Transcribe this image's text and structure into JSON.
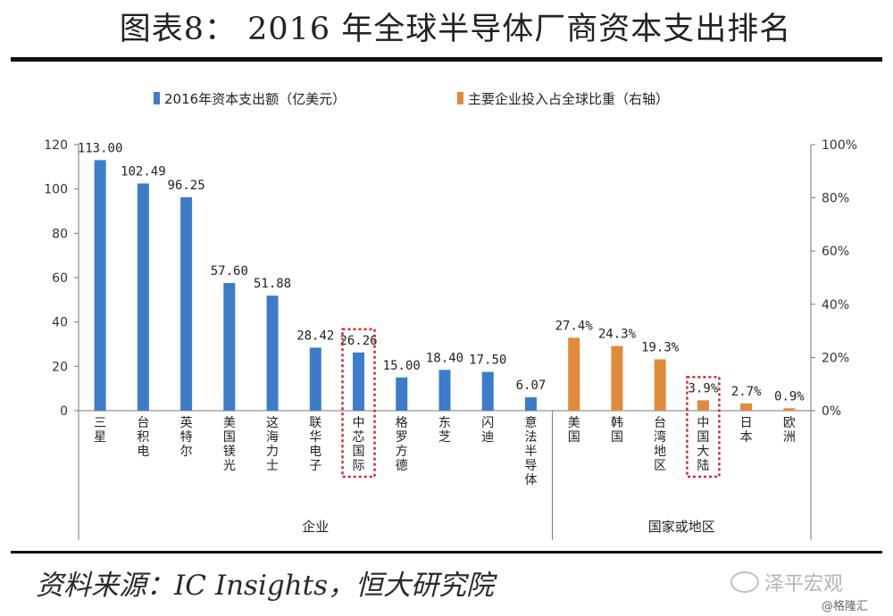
{
  "header": {
    "title": "图表8： 2016 年全球半导体厂商资本支出排名"
  },
  "footer": {
    "source": "资料来源：IC Insights，恒大研究院",
    "watermark": "泽平宏观",
    "watermark2": "@格隆汇"
  },
  "chart_data": {
    "type": "bar",
    "legend": [
      {
        "name": "2016年资本支出额（亿美元）",
        "color": "#3d7cc9"
      },
      {
        "name": "主要企业投入占全球比重（右轴）",
        "color": "#e08a3c"
      }
    ],
    "left_axis": {
      "ylim": [
        0,
        120
      ],
      "ticks": [
        "0",
        "20",
        "40",
        "60",
        "80",
        "100",
        "120"
      ]
    },
    "right_axis": {
      "ylim": [
        0,
        100
      ],
      "ticks": [
        "0%",
        "20%",
        "40%",
        "60%",
        "80%",
        "100%"
      ]
    },
    "groups": [
      {
        "label": "企业",
        "axis": "left",
        "color": "#3d7cc9",
        "categories": [
          "三星",
          "台积电",
          "英特尔",
          "美国镁光",
          "这海力士",
          "联华电子",
          "中芯国际",
          "格罗方德",
          "东芝",
          "闪迪",
          "意法半导体"
        ],
        "values": [
          113.0,
          102.49,
          96.25,
          57.6,
          51.88,
          28.42,
          26.26,
          15.0,
          18.4,
          17.5,
          6.07
        ],
        "labels": [
          "113.00",
          "102.49",
          "96.25",
          "57.60",
          "51.88",
          "28.42",
          "26.26",
          "15.00",
          "18.40",
          "17.50",
          "6.07"
        ],
        "highlight": "中芯国际"
      },
      {
        "label": "国家或地区",
        "axis": "right",
        "color": "#e08a3c",
        "categories": [
          "美国",
          "韩国",
          "台湾地区",
          "中国大陆",
          "日本",
          "欧洲"
        ],
        "values": [
          27.4,
          24.3,
          19.3,
          3.9,
          2.7,
          0.9
        ],
        "labels": [
          "27.4%",
          "24.3%",
          "19.3%",
          "3.9%",
          "2.7%",
          "0.9%"
        ],
        "highlight": "中国大陆"
      }
    ]
  }
}
